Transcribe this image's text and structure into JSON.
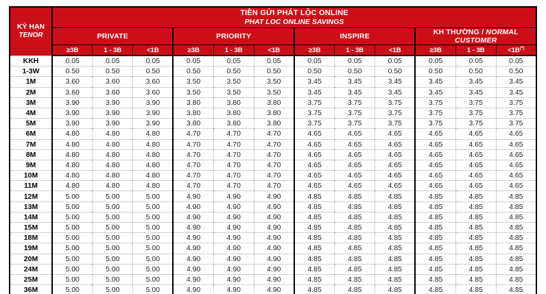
{
  "table": {
    "title_vi": "TIỀN GỬI PHÁT LỘC ONLINE",
    "title_en": "PHAT LOC ONLINE SAVINGS",
    "tenor_vi": "KỲ HẠN",
    "tenor_en": "TENOR",
    "colors": {
      "header_red": "#CB0F18",
      "border_black": "#000000"
    },
    "groups": [
      {
        "label": "PRIVATE",
        "label_italic": "",
        "subs": [
          {
            "text": "≥3B",
            "sup": ""
          },
          {
            "text": "1 - 3B",
            "sup": ""
          },
          {
            "text": "<1B",
            "sup": ""
          }
        ]
      },
      {
        "label": "PRIORITY",
        "label_italic": "",
        "subs": [
          {
            "text": "≥3B",
            "sup": ""
          },
          {
            "text": "1 - 3B",
            "sup": ""
          },
          {
            "text": "<1B",
            "sup": ""
          }
        ]
      },
      {
        "label": "INSPIRE",
        "label_italic": "",
        "subs": [
          {
            "text": "≥3B",
            "sup": ""
          },
          {
            "text": "1 - 3B",
            "sup": ""
          },
          {
            "text": "<1B",
            "sup": ""
          }
        ]
      },
      {
        "label": "KH THƯỜNG /",
        "label_italic": "NORMAL CUSTOMER",
        "subs": [
          {
            "text": "≥3B",
            "sup": ""
          },
          {
            "text": "1 - 3B",
            "sup": ""
          },
          {
            "text": "<1B",
            "sup": "(*)"
          }
        ]
      }
    ],
    "rows": [
      {
        "tenor": "KKH",
        "values": [
          "0.05",
          "0.05",
          "0.05",
          "0.05",
          "0.05",
          "0.05",
          "0.05",
          "0.05",
          "0.05",
          "0.05",
          "0.05",
          "0.05"
        ]
      },
      {
        "tenor": "1-3W",
        "values": [
          "0.50",
          "0.50",
          "0.50",
          "0.50",
          "0.50",
          "0.50",
          "0.50",
          "0.50",
          "0.50",
          "0.50",
          "0.50",
          "0.50"
        ]
      },
      {
        "tenor": "1M",
        "values": [
          "3.60",
          "3.60",
          "3.60",
          "3.50",
          "3.50",
          "3.50",
          "3.45",
          "3.45",
          "3.45",
          "3.45",
          "3.45",
          "3.45"
        ]
      },
      {
        "tenor": "2M",
        "values": [
          "3.60",
          "3.60",
          "3.60",
          "3.50",
          "3.50",
          "3.50",
          "3.45",
          "3.45",
          "3.45",
          "3.45",
          "3.45",
          "3.45"
        ]
      },
      {
        "tenor": "3M",
        "values": [
          "3.90",
          "3.90",
          "3.90",
          "3.80",
          "3.80",
          "3.80",
          "3.75",
          "3.75",
          "3.75",
          "3.75",
          "3.75",
          "3.75"
        ]
      },
      {
        "tenor": "4M",
        "values": [
          "3.90",
          "3.90",
          "3.90",
          "3.80",
          "3.80",
          "3.80",
          "3.75",
          "3.75",
          "3.75",
          "3.75",
          "3.75",
          "3.75"
        ]
      },
      {
        "tenor": "5M",
        "values": [
          "3.90",
          "3.90",
          "3.90",
          "3.80",
          "3.80",
          "3.80",
          "3.75",
          "3.75",
          "3.75",
          "3.75",
          "3.75",
          "3.75"
        ]
      },
      {
        "tenor": "6M",
        "values": [
          "4.80",
          "4.80",
          "4.80",
          "4.70",
          "4.70",
          "4.70",
          "4.65",
          "4.65",
          "4.65",
          "4.65",
          "4.65",
          "4.65"
        ]
      },
      {
        "tenor": "7M",
        "values": [
          "4.80",
          "4.80",
          "4.80",
          "4.70",
          "4.70",
          "4.70",
          "4.65",
          "4.65",
          "4.65",
          "4.65",
          "4.65",
          "4.65"
        ]
      },
      {
        "tenor": "8M",
        "values": [
          "4.80",
          "4.80",
          "4.80",
          "4.70",
          "4.70",
          "4.70",
          "4.65",
          "4.65",
          "4.65",
          "4.65",
          "4.65",
          "4.65"
        ]
      },
      {
        "tenor": "9M",
        "values": [
          "4.80",
          "4.80",
          "4.80",
          "4.70",
          "4.70",
          "4.70",
          "4.65",
          "4.65",
          "4.65",
          "4.65",
          "4.65",
          "4.65"
        ]
      },
      {
        "tenor": "10M",
        "values": [
          "4.80",
          "4.80",
          "4.80",
          "4.70",
          "4.70",
          "4.70",
          "4.65",
          "4.65",
          "4.65",
          "4.65",
          "4.65",
          "4.65"
        ]
      },
      {
        "tenor": "11M",
        "values": [
          "4.80",
          "4.80",
          "4.80",
          "4.70",
          "4.70",
          "4.70",
          "4.65",
          "4.65",
          "4.65",
          "4.65",
          "4.65",
          "4.65"
        ]
      },
      {
        "tenor": "12M",
        "values": [
          "5.00",
          "5.00",
          "5.00",
          "4.90",
          "4.90",
          "4.90",
          "4.85",
          "4.85",
          "4.85",
          "4.85",
          "4.85",
          "4.85"
        ]
      },
      {
        "tenor": "13M",
        "values": [
          "5.00",
          "5.00",
          "5.00",
          "4.90",
          "4.90",
          "4.90",
          "4.85",
          "4.85",
          "4.85",
          "4.85",
          "4.85",
          "4.85"
        ]
      },
      {
        "tenor": "14M",
        "values": [
          "5.00",
          "5.00",
          "5.00",
          "4.90",
          "4.90",
          "4.90",
          "4.85",
          "4.85",
          "4.85",
          "4.85",
          "4.85",
          "4.85"
        ]
      },
      {
        "tenor": "15M",
        "values": [
          "5.00",
          "5.00",
          "5.00",
          "4.90",
          "4.90",
          "4.90",
          "4.85",
          "4.85",
          "4.85",
          "4.85",
          "4.85",
          "4.85"
        ]
      },
      {
        "tenor": "18M",
        "values": [
          "5.00",
          "5.00",
          "5.00",
          "4.90",
          "4.90",
          "4.90",
          "4.85",
          "4.85",
          "4.85",
          "4.85",
          "4.85",
          "4.85"
        ]
      },
      {
        "tenor": "19M",
        "values": [
          "5.00",
          "5.00",
          "5.00",
          "4.90",
          "4.90",
          "4.90",
          "4.85",
          "4.85",
          "4.85",
          "4.85",
          "4.85",
          "4.85"
        ]
      },
      {
        "tenor": "20M",
        "values": [
          "5.00",
          "5.00",
          "5.00",
          "4.90",
          "4.90",
          "4.90",
          "4.85",
          "4.85",
          "4.85",
          "4.85",
          "4.85",
          "4.85"
        ]
      },
      {
        "tenor": "24M",
        "values": [
          "5.00",
          "5.00",
          "5.00",
          "4.90",
          "4.90",
          "4.90",
          "4.85",
          "4.85",
          "4.85",
          "4.85",
          "4.85",
          "4.85"
        ]
      },
      {
        "tenor": "25M",
        "values": [
          "5.00",
          "5.00",
          "5.00",
          "4.90",
          "4.90",
          "4.90",
          "4.85",
          "4.85",
          "4.85",
          "4.85",
          "4.85",
          "4.85"
        ]
      },
      {
        "tenor": "36M",
        "values": [
          "5.00",
          "5.00",
          "5.00",
          "4.90",
          "4.90",
          "4.90",
          "4.85",
          "4.85",
          "4.85",
          "4.85",
          "4.85",
          "4.85"
        ]
      }
    ]
  }
}
